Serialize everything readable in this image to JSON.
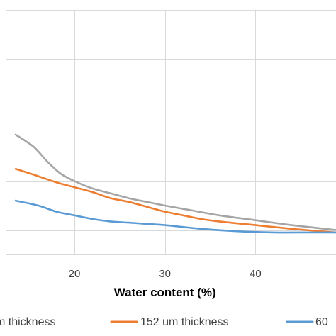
{
  "chart_data": {
    "type": "line",
    "title": "",
    "xlabel": "Water content (%)",
    "ylabel": "",
    "xlim": [
      12.4,
      48.9
    ],
    "ylim": [
      0,
      10
    ],
    "x_ticks": [
      20,
      30,
      40
    ],
    "x_tick_labels": [
      "20",
      "30",
      "40"
    ],
    "grid": "horizontal and vertical",
    "legend_position": "bottom",
    "series": [
      {
        "name": "…m thickness",
        "color": "#a5a5a5",
        "x": [
          13.5,
          15.5,
          17,
          18.5,
          20,
          22,
          24,
          26,
          28,
          30,
          33,
          36,
          40,
          44,
          48.9
        ],
        "y": [
          4.9,
          4.4,
          3.8,
          3.3,
          3.0,
          2.7,
          2.5,
          2.3,
          2.15,
          2.0,
          1.8,
          1.6,
          1.4,
          1.2,
          1.0
        ]
      },
      {
        "name": "152 um thickness",
        "color": "#ed7d31",
        "x": [
          13.5,
          16,
          18,
          20,
          22,
          24,
          26,
          28,
          30,
          32,
          34,
          36,
          40,
          44,
          48.9
        ],
        "y": [
          3.5,
          3.2,
          2.95,
          2.75,
          2.55,
          2.3,
          2.15,
          1.95,
          1.75,
          1.6,
          1.45,
          1.35,
          1.2,
          1.05,
          0.9
        ]
      },
      {
        "name": "60 …",
        "color": "#5b9bd5",
        "x": [
          13.5,
          16,
          18,
          20,
          22,
          24,
          26,
          28,
          30,
          34,
          38,
          42,
          46,
          48.9
        ],
        "y": [
          2.2,
          2.0,
          1.75,
          1.6,
          1.45,
          1.35,
          1.3,
          1.25,
          1.2,
          1.05,
          0.95,
          0.9,
          0.9,
          0.9
        ]
      }
    ]
  }
}
